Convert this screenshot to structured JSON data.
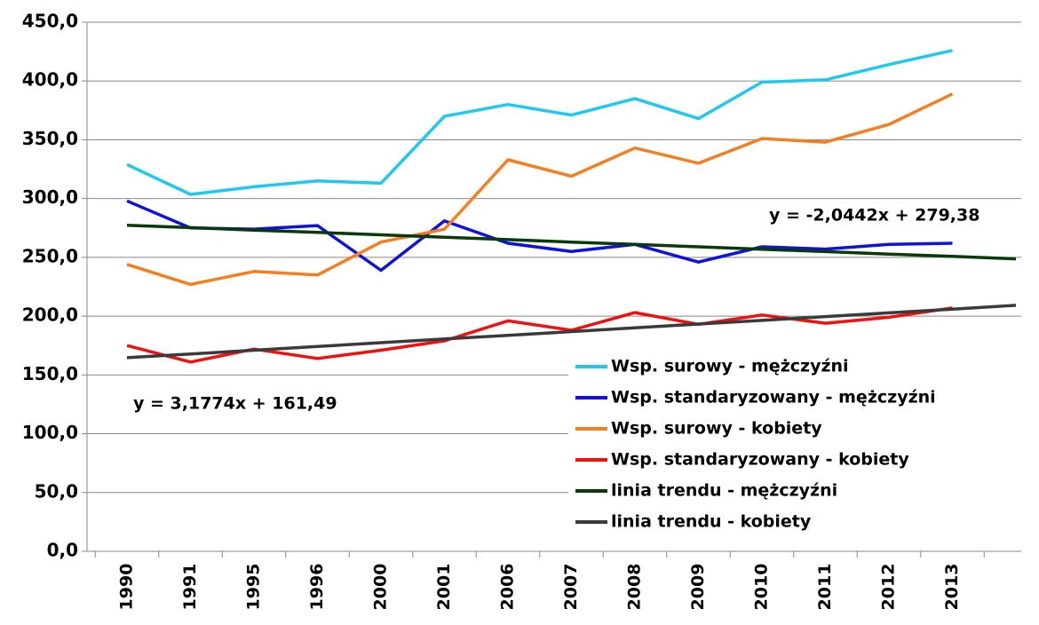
{
  "chart_data": {
    "type": "line",
    "categories": [
      "1990",
      "1991",
      "1995",
      "1996",
      "2000",
      "2001",
      "2006",
      "2007",
      "2008",
      "2009",
      "2010",
      "2011",
      "2012",
      "2013",
      null
    ],
    "series": [
      {
        "name": "Wsp. surowy  - mężczyźni",
        "color": "#1ec8f0",
        "values": [
          329,
          303.5,
          310,
          315,
          313,
          370,
          380,
          371,
          385,
          368,
          399,
          401,
          414,
          426,
          null
        ]
      },
      {
        "name": "Wsp. standaryzowany  - mężczyźni",
        "color": "#1010e0",
        "values": [
          298,
          275,
          274,
          277,
          239,
          281,
          262,
          255,
          261,
          246,
          259,
          257,
          261,
          262,
          null
        ]
      },
      {
        "name": "Wsp. surowy - kobiety",
        "color": "#f57f20",
        "values": [
          244,
          227,
          238,
          235,
          263,
          274,
          333,
          319,
          343,
          330,
          351,
          348,
          363,
          389,
          null
        ]
      },
      {
        "name": "Wsp. standaryzowany  - kobiety",
        "color": "#f01010",
        "values": [
          175,
          161,
          172,
          164,
          171,
          179,
          196,
          188,
          203,
          193,
          201,
          194,
          199,
          207,
          null
        ]
      },
      {
        "name": "linia trendu - mężczyźni",
        "color": "#0a3a0a",
        "values": [
          277.3,
          275.3,
          273.2,
          271.2,
          269.2,
          267.1,
          265.1,
          263.0,
          261.0,
          259.0,
          256.9,
          254.9,
          252.8,
          250.8,
          248.7
        ]
      },
      {
        "name": "linia trendu - kobiety",
        "color": "#3a3a3a",
        "values": [
          164.7,
          167.8,
          171.0,
          174.2,
          177.4,
          180.6,
          183.7,
          186.9,
          190.1,
          193.3,
          196.4,
          199.6,
          202.8,
          206.0,
          209.2
        ]
      }
    ],
    "annotations": [
      "y = -2,0442x + 279,38",
      "y = 3,1774x + 161,49"
    ],
    "ylim": [
      0,
      450
    ],
    "yticks": [
      {
        "value": 0,
        "label": "0,0"
      },
      {
        "value": 50,
        "label": "50,0"
      },
      {
        "value": 100,
        "label": "100,0"
      },
      {
        "value": 150,
        "label": "150,0"
      },
      {
        "value": 200,
        "label": "200,0"
      },
      {
        "value": 250,
        "label": "250,0"
      },
      {
        "value": 300,
        "label": "300,0"
      },
      {
        "value": 350,
        "label": "350,0"
      },
      {
        "value": 400,
        "label": "400,0"
      },
      {
        "value": 450,
        "label": "450,0"
      }
    ],
    "grid": true
  }
}
